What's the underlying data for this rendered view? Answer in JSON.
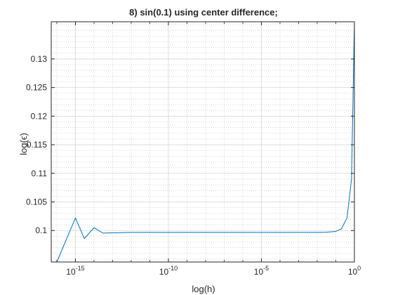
{
  "chart_data": {
    "type": "line",
    "title": "8) sin(0.1) using center difference;",
    "xlabel": "log(h)",
    "ylabel": "log(ϵ)",
    "xscale": "log",
    "xlim": [
      5e-17,
      1
    ],
    "ylim": [
      0.0945,
      0.1365
    ],
    "grid": true,
    "minor_grid": true,
    "legend": "none",
    "line_color": "#0072BD",
    "x_ticks": [
      {
        "base": "10",
        "exp": "-15",
        "value": 1e-15
      },
      {
        "base": "10",
        "exp": "-10",
        "value": 1e-10
      },
      {
        "base": "10",
        "exp": "-5",
        "value": 1e-05
      },
      {
        "base": "10",
        "exp": "0",
        "value": 1
      }
    ],
    "y_ticks": [
      "0.1",
      "0.105",
      "0.11",
      "0.115",
      "0.12",
      "0.125",
      "0.13"
    ],
    "series": [
      {
        "x": [
          5e-17,
          1e-16,
          1e-15,
          3e-15,
          1e-14,
          3e-14,
          1e-13,
          1e-12,
          1e-11,
          1e-10,
          1e-09,
          1e-08,
          1e-07,
          1e-06,
          1e-05,
          0.0001,
          0.001,
          0.01,
          0.03,
          0.1,
          0.2,
          0.4,
          0.7,
          1
        ],
        "y": [
          0.0945,
          0.0945,
          0.1022,
          0.0986,
          0.1005,
          0.09955,
          0.0996,
          0.09967,
          0.09967,
          0.09967,
          0.09967,
          0.09967,
          0.09967,
          0.09967,
          0.09967,
          0.09967,
          0.09967,
          0.09967,
          0.0997,
          0.09985,
          0.1003,
          0.1022,
          0.109,
          0.1365
        ]
      }
    ]
  }
}
